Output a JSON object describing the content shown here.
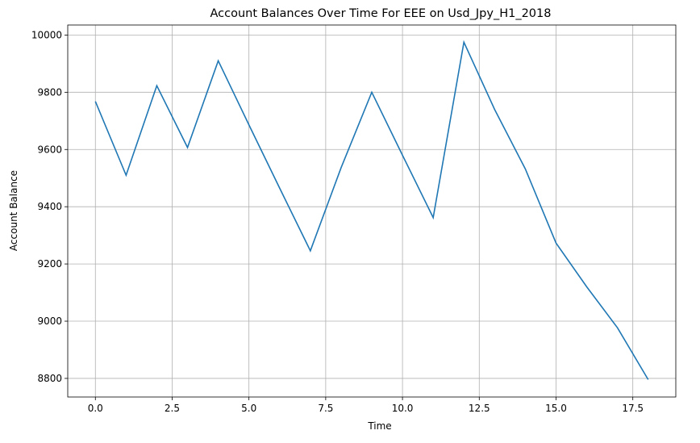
{
  "chart_data": {
    "type": "line",
    "title": "Account Balances Over Time For EEE on Usd_Jpy_H1_2018",
    "xlabel": "Time",
    "ylabel": "Account Balance",
    "xlim": [
      -0.9,
      18.9
    ],
    "ylim": [
      8735,
      10035
    ],
    "grid": true,
    "xticks": [
      0.0,
      2.5,
      5.0,
      7.5,
      10.0,
      12.5,
      15.0,
      17.5
    ],
    "xtick_labels": [
      "0.0",
      "2.5",
      "5.0",
      "7.5",
      "10.0",
      "12.5",
      "15.0",
      "17.5"
    ],
    "yticks": [
      8800,
      9000,
      9200,
      9400,
      9600,
      9800,
      10000
    ],
    "ytick_labels": [
      "8800",
      "9000",
      "9200",
      "9400",
      "9600",
      "9800",
      "10000"
    ],
    "series": [
      {
        "color": "#1f77b4",
        "x": [
          0,
          1,
          2,
          3,
          4,
          5,
          6,
          7,
          8,
          9,
          10,
          11,
          12,
          13,
          14,
          15,
          16,
          17,
          18
        ],
        "values": [
          9768,
          9510,
          9823,
          9607,
          9910,
          9686,
          9465,
          9246,
          9536,
          9800,
          9580,
          9362,
          9975,
          9740,
          9532,
          9273,
          9120,
          8977,
          8796
        ]
      }
    ]
  }
}
